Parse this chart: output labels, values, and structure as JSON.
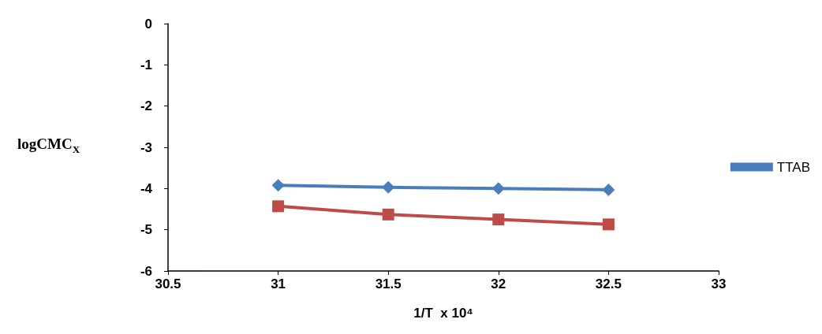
{
  "chart_data": {
    "type": "line",
    "xlabel": "1/T  x 10⁴",
    "ylabel": "logCMC$_{X}$",
    "x": [
      31,
      31.5,
      32,
      32.5
    ],
    "series": [
      {
        "name": "TTAB",
        "color": "#4a7ebb",
        "marker": "diamond",
        "values": [
          -3.92,
          -3.97,
          -4.0,
          -4.03
        ]
      },
      {
        "color": "#be4b48",
        "marker": "square",
        "values": [
          -4.43,
          -4.63,
          -4.75,
          -4.87
        ]
      }
    ],
    "xlim": [
      30.5,
      33
    ],
    "xticks": [
      30.5,
      31,
      31.5,
      32,
      32.5,
      33
    ],
    "ylim": [
      -6,
      0
    ],
    "yticks": [
      -6,
      -5,
      -4,
      -3,
      -2,
      -1,
      0
    ],
    "grid": false,
    "legend": "right",
    "line_style": "solid"
  }
}
